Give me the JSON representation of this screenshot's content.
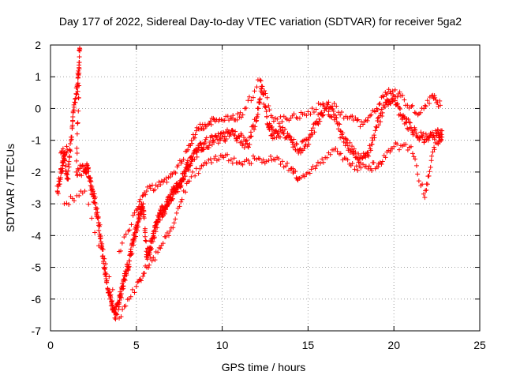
{
  "chart_data": {
    "type": "scatter",
    "title": "Day 177 of 2022, Sidereal Day-to-day VTEC variation (SDTVAR) for receiver 5ga2",
    "xlabel": "GPS time / hours",
    "ylabel": "SDTVAR / TECUs",
    "xlim": [
      0,
      25
    ],
    "ylim": [
      -7,
      2
    ],
    "xticks": [
      0,
      5,
      10,
      15,
      20,
      25
    ],
    "yticks": [
      -7,
      -6,
      -5,
      -4,
      -3,
      -2,
      -1,
      0,
      1,
      2
    ],
    "grid": true,
    "marker": "+",
    "color": "#ff0000",
    "series": [
      {
        "name": "SDTVAR",
        "trend": [
          [
            0.4,
            -2.6
          ],
          [
            0.6,
            -2.0
          ],
          [
            0.8,
            -1.5
          ],
          [
            1.0,
            -2.2
          ],
          [
            1.2,
            -0.9
          ],
          [
            1.4,
            0.2
          ],
          [
            1.6,
            0.8
          ],
          [
            1.7,
            1.9
          ],
          [
            1.5,
            -2.0
          ],
          [
            2.0,
            -1.9
          ],
          [
            2.2,
            -1.9
          ],
          [
            2.4,
            -2.5
          ],
          [
            2.6,
            -3.0
          ],
          [
            2.8,
            -3.6
          ],
          [
            3.0,
            -4.4
          ],
          [
            3.2,
            -5.2
          ],
          [
            3.4,
            -5.8
          ],
          [
            3.6,
            -6.2
          ],
          [
            3.8,
            -6.5
          ],
          [
            4.0,
            -6.1
          ],
          [
            4.2,
            -5.6
          ],
          [
            4.4,
            -5.2
          ],
          [
            4.6,
            -4.8
          ],
          [
            4.8,
            -4.2
          ],
          [
            5.0,
            -3.8
          ],
          [
            5.2,
            -3.3
          ],
          [
            5.4,
            -3.0
          ],
          [
            5.6,
            -4.6
          ],
          [
            5.8,
            -4.4
          ],
          [
            6.0,
            -4.0
          ],
          [
            6.2,
            -3.6
          ],
          [
            6.4,
            -3.3
          ],
          [
            6.6,
            -3.2
          ],
          [
            6.8,
            -3.0
          ],
          [
            7.0,
            -2.8
          ],
          [
            7.2,
            -2.6
          ],
          [
            7.4,
            -2.5
          ],
          [
            7.6,
            -2.3
          ],
          [
            7.8,
            -2.0
          ],
          [
            8.0,
            -1.8
          ],
          [
            8.3,
            -1.6
          ],
          [
            8.6,
            -1.3
          ],
          [
            9.0,
            -1.1
          ],
          [
            9.5,
            -1.0
          ],
          [
            10.0,
            -0.9
          ],
          [
            10.5,
            -0.8
          ],
          [
            11.0,
            -0.9
          ],
          [
            11.5,
            -1.2
          ],
          [
            12.0,
            -0.3
          ],
          [
            12.3,
            0.7
          ],
          [
            12.7,
            -0.6
          ],
          [
            13.0,
            -0.8
          ],
          [
            13.5,
            -0.7
          ],
          [
            14.0,
            -1.0
          ],
          [
            14.5,
            -1.3
          ],
          [
            15.0,
            -1.0
          ],
          [
            15.5,
            -0.4
          ],
          [
            16.0,
            0.0
          ],
          [
            16.5,
            -0.2
          ],
          [
            17.0,
            -0.9
          ],
          [
            17.5,
            -1.3
          ],
          [
            18.0,
            -1.6
          ],
          [
            18.5,
            -1.4
          ],
          [
            19.0,
            -0.6
          ],
          [
            19.5,
            0.2
          ],
          [
            20.0,
            0.3
          ],
          [
            20.5,
            -0.3
          ],
          [
            21.0,
            -0.6
          ],
          [
            21.5,
            -0.9
          ],
          [
            22.0,
            -1.0
          ],
          [
            22.5,
            -0.8
          ],
          [
            22.8,
            -0.9
          ]
        ],
        "upper": [
          [
            0.6,
            -1.4
          ],
          [
            1.0,
            -1.3
          ],
          [
            4.0,
            -4.5
          ],
          [
            5.0,
            -3.2
          ],
          [
            5.6,
            -2.6
          ],
          [
            6.4,
            -2.4
          ],
          [
            7.2,
            -2.0
          ],
          [
            8.0,
            -1.3
          ],
          [
            8.5,
            -0.7
          ],
          [
            9.0,
            -0.5
          ],
          [
            9.6,
            -0.4
          ],
          [
            10.5,
            -0.3
          ],
          [
            11.2,
            -0.2
          ],
          [
            12.2,
            0.9
          ],
          [
            13.0,
            -0.4
          ],
          [
            14.0,
            -0.3
          ],
          [
            15.0,
            -0.1
          ],
          [
            16.2,
            0.2
          ],
          [
            17.3,
            -0.3
          ],
          [
            18.2,
            -0.5
          ],
          [
            19.0,
            0.0
          ],
          [
            19.7,
            0.6
          ],
          [
            20.4,
            0.4
          ],
          [
            21.4,
            -0.2
          ],
          [
            22.2,
            0.4
          ],
          [
            22.7,
            0.1
          ]
        ],
        "lower": [
          [
            0.8,
            -3.0
          ],
          [
            2.0,
            -2.6
          ],
          [
            4.0,
            -6.6
          ],
          [
            5.0,
            -5.6
          ],
          [
            5.6,
            -5.0
          ],
          [
            6.4,
            -4.4
          ],
          [
            7.2,
            -3.6
          ],
          [
            8.0,
            -2.3
          ],
          [
            9.0,
            -1.7
          ],
          [
            10.0,
            -1.5
          ],
          [
            11.0,
            -1.7
          ],
          [
            12.0,
            -1.6
          ],
          [
            13.0,
            -1.6
          ],
          [
            14.0,
            -1.9
          ],
          [
            14.5,
            -2.2
          ],
          [
            15.5,
            -1.8
          ],
          [
            16.5,
            -1.3
          ],
          [
            17.5,
            -1.8
          ],
          [
            18.5,
            -1.9
          ],
          [
            19.2,
            -1.7
          ],
          [
            20.0,
            -1.2
          ],
          [
            21.0,
            -1.2
          ],
          [
            21.8,
            -2.8
          ],
          [
            22.2,
            -1.5
          ],
          [
            22.8,
            -0.7
          ]
        ]
      }
    ]
  }
}
